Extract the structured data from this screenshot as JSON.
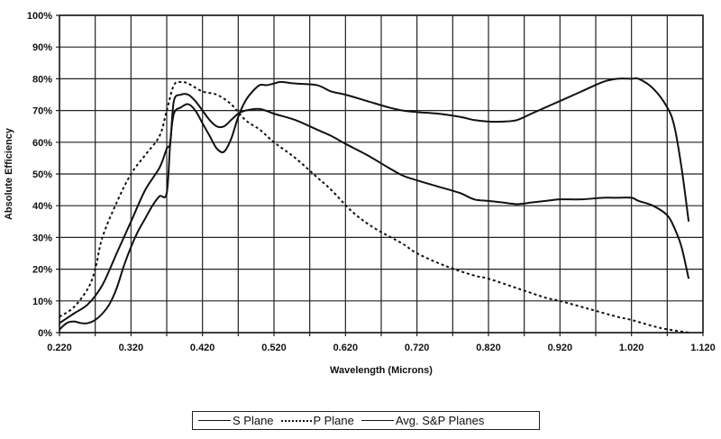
{
  "chart_data": {
    "type": "line",
    "title": "",
    "xlabel": "Wavelength (Microns)",
    "ylabel": "Absolute Efficiency",
    "xlim": [
      0.22,
      1.12
    ],
    "ylim": [
      0,
      100
    ],
    "grid": true,
    "x_ticks": [
      "0.220",
      "0.320",
      "0.420",
      "0.520",
      "0.620",
      "0.720",
      "0.820",
      "0.920",
      "1.020",
      "1.120"
    ],
    "y_ticks": [
      "0%",
      "10%",
      "20%",
      "30%",
      "40%",
      "50%",
      "60%",
      "70%",
      "80%",
      "90%",
      "100%"
    ],
    "legend_position": "bottom",
    "series": [
      {
        "name": "S Plane",
        "style": "solid",
        "x": [
          0.22,
          0.23,
          0.24,
          0.25,
          0.26,
          0.27,
          0.28,
          0.29,
          0.3,
          0.31,
          0.32,
          0.33,
          0.34,
          0.35,
          0.36,
          0.37,
          0.375,
          0.38,
          0.39,
          0.4,
          0.41,
          0.42,
          0.43,
          0.44,
          0.45,
          0.46,
          0.47,
          0.48,
          0.49,
          0.5,
          0.51,
          0.52,
          0.53,
          0.55,
          0.58,
          0.6,
          0.62,
          0.65,
          0.68,
          0.7,
          0.72,
          0.75,
          0.78,
          0.8,
          0.82,
          0.84,
          0.86,
          0.88,
          0.9,
          0.92,
          0.95,
          0.98,
          1.0,
          1.02,
          1.03,
          1.05,
          1.07,
          1.08,
          1.09,
          1.1
        ],
        "y": [
          1,
          3,
          3.5,
          3,
          3,
          4,
          6,
          9,
          14,
          21,
          27,
          32,
          36,
          40,
          43,
          44,
          60,
          69,
          71,
          72,
          70,
          66,
          62,
          58,
          57,
          61,
          68,
          73,
          76,
          78,
          78,
          78.5,
          79,
          78.5,
          78,
          76,
          75,
          73,
          71,
          70,
          69.5,
          69,
          68,
          67,
          66.5,
          66.5,
          67,
          69,
          71,
          73,
          76,
          79,
          80,
          80,
          80,
          77,
          71,
          65,
          52,
          35
        ]
      },
      {
        "name": "P Plane",
        "style": "dotted",
        "x": [
          0.22,
          0.24,
          0.26,
          0.27,
          0.28,
          0.3,
          0.32,
          0.34,
          0.36,
          0.37,
          0.38,
          0.39,
          0.4,
          0.42,
          0.44,
          0.46,
          0.48,
          0.5,
          0.52,
          0.55,
          0.58,
          0.6,
          0.63,
          0.66,
          0.7,
          0.72,
          0.76,
          0.8,
          0.82,
          0.86,
          0.9,
          0.92,
          0.96,
          1.0,
          1.02,
          1.06,
          1.1
        ],
        "y": [
          5,
          8,
          14,
          20,
          30,
          41,
          50,
          56,
          62,
          70,
          78,
          79,
          78.5,
          76,
          75,
          72,
          67,
          64,
          60,
          55,
          49,
          45,
          38,
          33,
          28,
          25,
          21,
          18,
          17,
          14,
          11,
          10,
          7.5,
          5,
          4,
          1.5,
          0
        ]
      },
      {
        "name": "Avg. S&P Planes",
        "style": "solid",
        "x": [
          0.22,
          0.24,
          0.26,
          0.28,
          0.3,
          0.32,
          0.34,
          0.36,
          0.37,
          0.375,
          0.38,
          0.39,
          0.4,
          0.41,
          0.42,
          0.43,
          0.44,
          0.45,
          0.46,
          0.47,
          0.48,
          0.5,
          0.52,
          0.55,
          0.58,
          0.6,
          0.62,
          0.65,
          0.68,
          0.7,
          0.72,
          0.75,
          0.78,
          0.8,
          0.82,
          0.84,
          0.86,
          0.88,
          0.9,
          0.92,
          0.95,
          0.98,
          1.0,
          1.02,
          1.03,
          1.05,
          1.07,
          1.08,
          1.09,
          1.1
        ],
        "y": [
          3,
          6,
          9,
          15,
          25,
          35,
          45,
          52,
          58,
          60,
          73,
          75,
          75,
          73,
          70,
          67,
          65,
          65,
          67,
          69,
          70,
          70.5,
          69,
          67,
          64,
          62,
          59.5,
          56,
          52,
          49.5,
          48,
          46,
          44,
          42,
          41.5,
          41,
          40.5,
          41,
          41.5,
          42,
          42,
          42.5,
          42.5,
          42.5,
          41.5,
          40,
          37,
          33,
          27,
          17
        ]
      }
    ]
  }
}
